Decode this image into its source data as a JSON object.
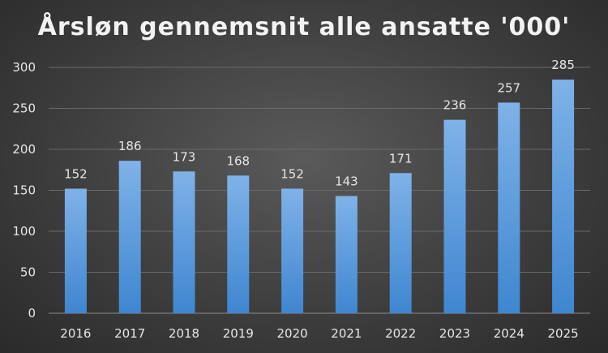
{
  "chart_data": {
    "type": "bar",
    "title": "Årsløn gennemsnit alle ansatte '000'",
    "categories": [
      "2016",
      "2017",
      "2018",
      "2019",
      "2020",
      "2021",
      "2022",
      "2023",
      "2024",
      "2025"
    ],
    "values": [
      152,
      186,
      173,
      168,
      152,
      143,
      171,
      236,
      257,
      285
    ],
    "yticks": [
      0,
      50,
      100,
      150,
      200,
      250,
      300
    ],
    "ylim": [
      0,
      300
    ],
    "xlabel": "",
    "ylabel": "",
    "grid": true,
    "legend": "none",
    "bar_color_top": "#7fb2e8",
    "bar_color_bottom": "#3f86d0"
  }
}
